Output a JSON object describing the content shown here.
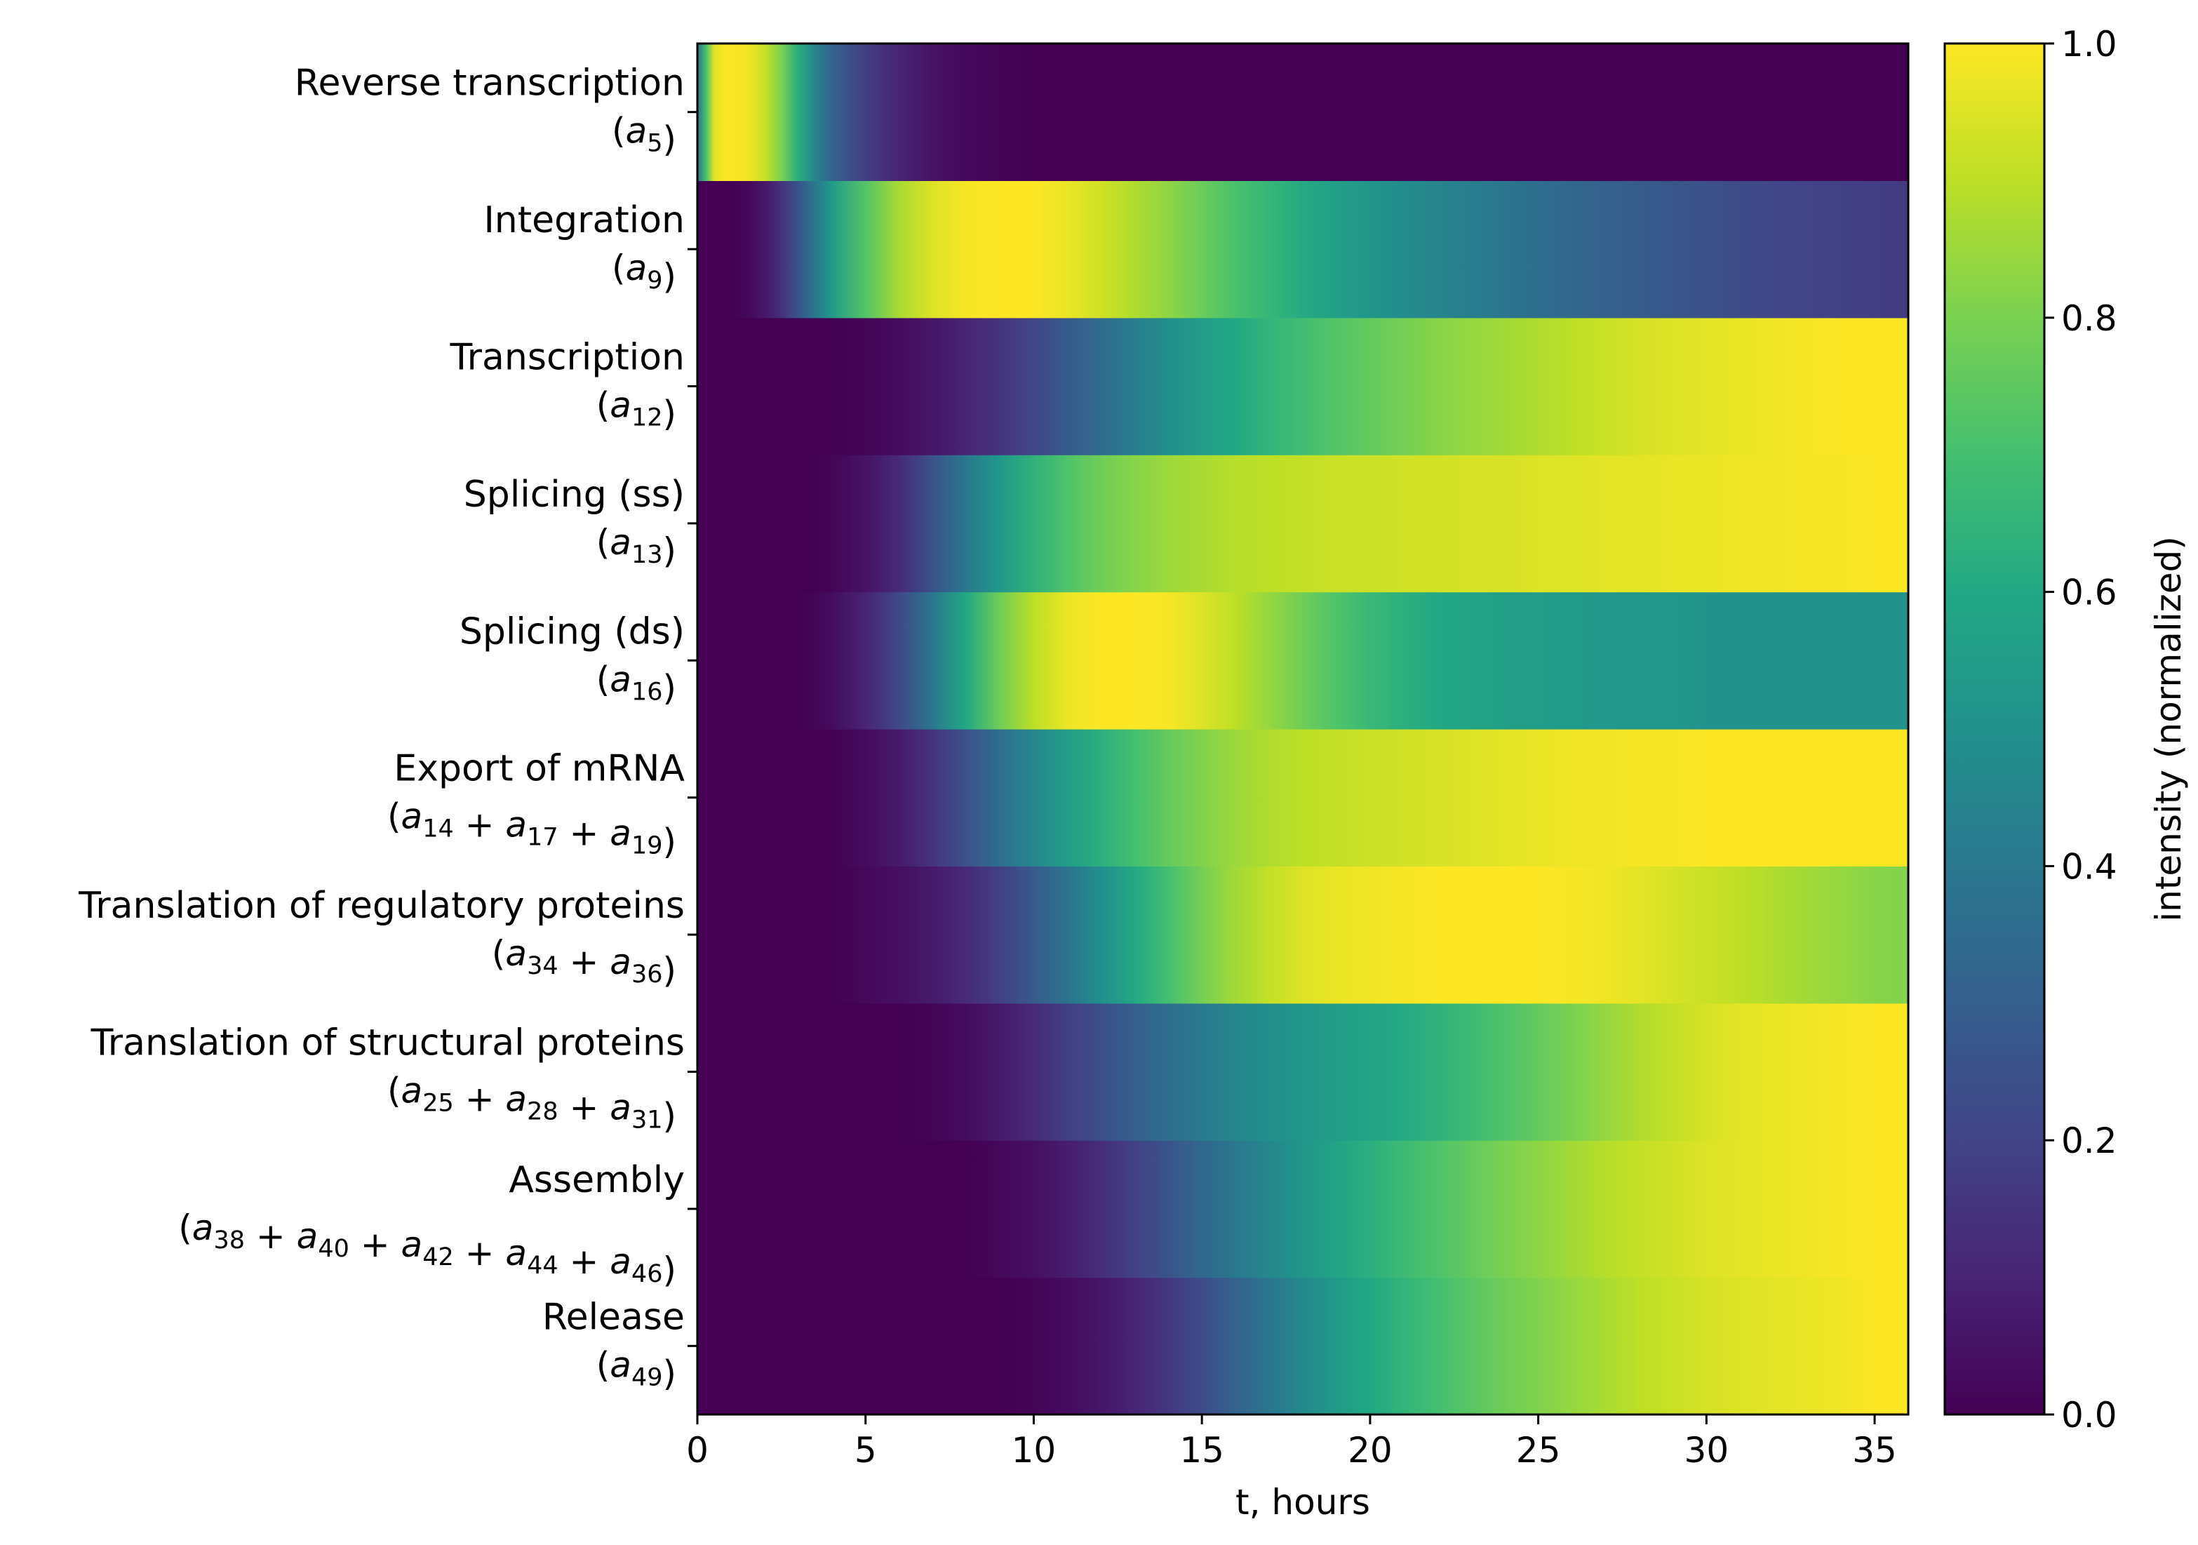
{
  "chart_data": {
    "type": "heatmap",
    "xlabel": "t, hours",
    "xlim": [
      0,
      36
    ],
    "x_ticks": [
      0,
      5,
      10,
      15,
      20,
      25,
      30,
      35
    ],
    "colorbar": {
      "label": "intensity (normalized)",
      "range": [
        0.0,
        1.0
      ],
      "ticks": [
        "0.0",
        "0.2",
        "0.4",
        "0.6",
        "0.8",
        "1.0"
      ],
      "colormap": "viridis",
      "colormap_stops": [
        "#440154",
        "#482475",
        "#414487",
        "#355f8d",
        "#2a788e",
        "#21918c",
        "#22a884",
        "#44bf70",
        "#7ad151",
        "#bddf26",
        "#fde725"
      ]
    },
    "x_samples": [
      0,
      0.25,
      0.5,
      0.75,
      1,
      1.5,
      2,
      2.5,
      3,
      3.5,
      4,
      5,
      6,
      7,
      8,
      9,
      10,
      11,
      12,
      13,
      14,
      15,
      16,
      17,
      18,
      19,
      20,
      21,
      22,
      23,
      24,
      25,
      26,
      27,
      28,
      29,
      30,
      31,
      32,
      33,
      34,
      35,
      36
    ],
    "rows": [
      {
        "label": "Release",
        "formula": [
          [
            "(",
            ""
          ],
          [
            "a",
            "49"
          ],
          [
            ")",
            ""
          ]
        ],
        "values": [
          0,
          0,
          0,
          0,
          0,
          0,
          0,
          0,
          0,
          0,
          0,
          0,
          0,
          0,
          0,
          0,
          0.01,
          0.03,
          0.06,
          0.1,
          0.16,
          0.23,
          0.31,
          0.39,
          0.47,
          0.54,
          0.6,
          0.65,
          0.7,
          0.74,
          0.78,
          0.81,
          0.84,
          0.87,
          0.9,
          0.92,
          0.94,
          0.95,
          0.96,
          0.97,
          0.98,
          1.0,
          1.0
        ]
      },
      {
        "label": "Assembly",
        "formula": [
          [
            "(",
            ""
          ],
          [
            "a",
            "38"
          ],
          [
            " + ",
            ""
          ],
          [
            "a",
            "40"
          ],
          [
            " + ",
            ""
          ],
          [
            "a",
            "42"
          ],
          [
            " + ",
            ""
          ],
          [
            "a",
            "44"
          ],
          [
            " + ",
            ""
          ],
          [
            "a",
            "46"
          ],
          [
            ")",
            ""
          ]
        ],
        "values": [
          0,
          0,
          0,
          0,
          0,
          0,
          0,
          0,
          0,
          0,
          0,
          0,
          0,
          0,
          0,
          0.02,
          0.04,
          0.08,
          0.13,
          0.19,
          0.26,
          0.33,
          0.4,
          0.46,
          0.52,
          0.58,
          0.63,
          0.68,
          0.72,
          0.76,
          0.8,
          0.83,
          0.86,
          0.89,
          0.91,
          0.93,
          0.95,
          0.96,
          0.97,
          0.98,
          0.99,
          1.0,
          1.0
        ]
      },
      {
        "label": "Translation of structural proteins",
        "formula": [
          [
            "(",
            ""
          ],
          [
            "a",
            "25"
          ],
          [
            " + ",
            ""
          ],
          [
            "a",
            "28"
          ],
          [
            " + ",
            ""
          ],
          [
            "a",
            "31"
          ],
          [
            ")",
            ""
          ]
        ],
        "values": [
          0,
          0,
          0,
          0,
          0,
          0,
          0,
          0,
          0,
          0,
          0,
          0,
          0,
          0.01,
          0.03,
          0.07,
          0.12,
          0.18,
          0.24,
          0.3,
          0.36,
          0.41,
          0.45,
          0.49,
          0.52,
          0.55,
          0.58,
          0.61,
          0.64,
          0.68,
          0.72,
          0.76,
          0.8,
          0.84,
          0.88,
          0.91,
          0.94,
          0.96,
          0.97,
          0.98,
          0.99,
          1.0,
          1.0
        ]
      },
      {
        "label": "Translation of regulatory proteins",
        "formula": [
          [
            "(",
            ""
          ],
          [
            "a",
            "34"
          ],
          [
            " + ",
            ""
          ],
          [
            "a",
            "36"
          ],
          [
            ")",
            ""
          ]
        ],
        "values": [
          0,
          0,
          0,
          0,
          0,
          0,
          0,
          0,
          0,
          0,
          0,
          0.02,
          0.04,
          0.07,
          0.12,
          0.19,
          0.28,
          0.38,
          0.49,
          0.6,
          0.7,
          0.79,
          0.86,
          0.91,
          0.95,
          0.97,
          0.98,
          0.99,
          1.0,
          1.0,
          1.0,
          1.0,
          0.99,
          0.98,
          0.96,
          0.94,
          0.92,
          0.9,
          0.88,
          0.86,
          0.84,
          0.82,
          0.81
        ]
      },
      {
        "label": "Export of mRNA",
        "formula": [
          [
            "(",
            ""
          ],
          [
            "a",
            "14"
          ],
          [
            " + ",
            ""
          ],
          [
            "a",
            "17"
          ],
          [
            " + ",
            ""
          ],
          [
            "a",
            "19"
          ],
          [
            ")",
            ""
          ]
        ],
        "values": [
          0,
          0,
          0,
          0,
          0,
          0,
          0,
          0,
          0,
          0,
          0,
          0.03,
          0.07,
          0.15,
          0.25,
          0.36,
          0.46,
          0.55,
          0.63,
          0.7,
          0.76,
          0.81,
          0.85,
          0.88,
          0.9,
          0.91,
          0.92,
          0.93,
          0.94,
          0.95,
          0.96,
          0.97,
          0.98,
          0.98,
          0.99,
          0.99,
          1.0,
          1.0,
          1.0,
          1.0,
          1.0,
          1.0,
          1.0
        ]
      },
      {
        "label": "Splicing (ds)",
        "formula": [
          [
            "(",
            ""
          ],
          [
            "a",
            "16"
          ],
          [
            ")",
            ""
          ]
        ],
        "values": [
          0,
          0,
          0,
          0,
          0,
          0,
          0,
          0,
          0,
          0.01,
          0.03,
          0.1,
          0.22,
          0.4,
          0.6,
          0.78,
          0.9,
          0.97,
          1.0,
          1.0,
          0.99,
          0.95,
          0.9,
          0.84,
          0.78,
          0.72,
          0.67,
          0.63,
          0.6,
          0.58,
          0.56,
          0.55,
          0.54,
          0.53,
          0.52,
          0.52,
          0.51,
          0.51,
          0.5,
          0.5,
          0.5,
          0.5,
          0.5
        ]
      },
      {
        "label": "Splicing (ss)",
        "formula": [
          [
            "(",
            ""
          ],
          [
            "a",
            "13"
          ],
          [
            ")",
            ""
          ]
        ],
        "values": [
          0,
          0,
          0,
          0,
          0,
          0,
          0,
          0,
          0,
          0,
          0.01,
          0.05,
          0.12,
          0.25,
          0.4,
          0.53,
          0.64,
          0.72,
          0.78,
          0.82,
          0.85,
          0.87,
          0.89,
          0.9,
          0.91,
          0.92,
          0.92,
          0.93,
          0.93,
          0.94,
          0.94,
          0.95,
          0.95,
          0.96,
          0.96,
          0.97,
          0.97,
          0.98,
          0.98,
          0.99,
          0.99,
          1.0,
          1.0
        ]
      },
      {
        "label": "Transcription",
        "formula": [
          [
            "(",
            ""
          ],
          [
            "a",
            "12"
          ],
          [
            ")",
            ""
          ]
        ],
        "values": [
          0,
          0,
          0,
          0,
          0,
          0,
          0,
          0,
          0,
          0,
          0,
          0.01,
          0.03,
          0.06,
          0.1,
          0.15,
          0.21,
          0.28,
          0.35,
          0.42,
          0.49,
          0.55,
          0.6,
          0.65,
          0.69,
          0.73,
          0.76,
          0.79,
          0.82,
          0.84,
          0.86,
          0.88,
          0.9,
          0.92,
          0.94,
          0.95,
          0.96,
          0.97,
          0.98,
          0.99,
          1.0,
          1.0,
          1.0
        ]
      },
      {
        "label": "Integration",
        "formula": [
          [
            "(",
            ""
          ],
          [
            "a",
            "9"
          ],
          [
            ")",
            ""
          ]
        ],
        "values": [
          0,
          0,
          0,
          0,
          0,
          0.02,
          0.06,
          0.14,
          0.26,
          0.4,
          0.54,
          0.73,
          0.87,
          0.95,
          0.99,
          1.0,
          1.0,
          0.97,
          0.93,
          0.88,
          0.83,
          0.77,
          0.71,
          0.66,
          0.61,
          0.56,
          0.52,
          0.48,
          0.45,
          0.42,
          0.39,
          0.36,
          0.33,
          0.31,
          0.29,
          0.27,
          0.25,
          0.23,
          0.21,
          0.2,
          0.19,
          0.18,
          0.17
        ]
      },
      {
        "label": "Reverse transcription",
        "formula": [
          [
            "(",
            ""
          ],
          [
            "a",
            "5"
          ],
          [
            ")",
            ""
          ]
        ],
        "values": [
          0.35,
          0.7,
          0.95,
          0.99,
          1.0,
          0.98,
          0.92,
          0.8,
          0.62,
          0.45,
          0.32,
          0.18,
          0.1,
          0.05,
          0.02,
          0.01,
          0,
          0,
          0,
          0,
          0,
          0,
          0,
          0,
          0,
          0,
          0,
          0,
          0,
          0,
          0,
          0,
          0,
          0,
          0,
          0,
          0,
          0,
          0,
          0,
          0,
          0,
          0
        ]
      }
    ]
  }
}
